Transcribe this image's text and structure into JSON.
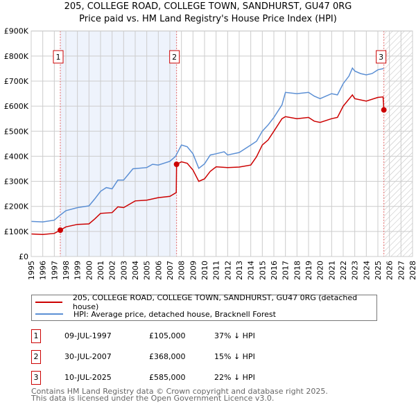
{
  "title": "205, COLLEGE ROAD, COLLEGE TOWN, SANDHURST, GU47 0RG",
  "subtitle": "Price paid vs. HM Land Registry's House Price Index (HPI)",
  "chart_data": {
    "type": "line",
    "title": "205, COLLEGE ROAD, COLLEGE TOWN, SANDHURST, GU47 0RG",
    "subtitle": "Price paid vs. HM Land Registry's House Price Index (HPI)",
    "xlim": [
      1995,
      2028
    ],
    "ylim": [
      0,
      900000
    ],
    "y_ticks": [
      0,
      100000,
      200000,
      300000,
      400000,
      500000,
      600000,
      700000,
      800000,
      900000
    ],
    "y_tick_labels": [
      "£0",
      "£100K",
      "£200K",
      "£300K",
      "£400K",
      "£500K",
      "£600K",
      "£700K",
      "£800K",
      "£900K"
    ],
    "x_ticks": [
      1995,
      1996,
      1997,
      1998,
      1999,
      2000,
      2001,
      2002,
      2003,
      2004,
      2005,
      2006,
      2007,
      2008,
      2009,
      2010,
      2011,
      2012,
      2013,
      2014,
      2015,
      2016,
      2017,
      2018,
      2019,
      2020,
      2021,
      2022,
      2023,
      2024,
      2025,
      2026,
      2027,
      2028
    ],
    "grid": true,
    "colors": {
      "property": "#cc0000",
      "hpi": "#5b8fd4",
      "shade": "#eef3fc",
      "sale_line": "#e06060"
    },
    "series": [
      {
        "name": "205, COLLEGE ROAD, COLLEGE TOWN, SANDHURST, GU47 0RG (detached house)",
        "color": "#cc0000",
        "x": [
          1995,
          1996,
          1997,
          1997.52,
          1998,
          1999,
          2000,
          2000.5,
          2001,
          2002,
          2002.5,
          2003,
          2004,
          2005,
          2006,
          2007,
          2007.55,
          2007.58,
          2008,
          2008.5,
          2009,
          2009.5,
          2010,
          2010.5,
          2011,
          2012,
          2013,
          2014,
          2014.5,
          2015,
          2015.5,
          2016,
          2016.7,
          2017,
          2018,
          2019,
          2019.5,
          2020,
          2021,
          2021.5,
          2022,
          2022.8,
          2023,
          2024,
          2025,
          2025.45,
          2025.52
        ],
        "y": [
          90000,
          88000,
          92000,
          105000,
          118000,
          128000,
          130000,
          150000,
          172000,
          175000,
          198000,
          195000,
          222000,
          225000,
          235000,
          240000,
          255000,
          368000,
          378000,
          372000,
          345000,
          300000,
          310000,
          340000,
          358000,
          355000,
          357000,
          365000,
          398000,
          445000,
          465000,
          500000,
          550000,
          558000,
          550000,
          555000,
          540000,
          535000,
          550000,
          555000,
          600000,
          645000,
          630000,
          620000,
          635000,
          637000,
          585000
        ]
      },
      {
        "name": "HPI: Average price, detached house, Bracknell Forest",
        "color": "#5b8fd4",
        "x": [
          1995,
          1996,
          1997,
          1997.5,
          1998,
          1999,
          2000,
          2000.5,
          2001,
          2001.5,
          2002,
          2002.5,
          2003,
          2003.8,
          2005,
          2005.5,
          2006,
          2007,
          2007.5,
          2008,
          2008.5,
          2009,
          2009.5,
          2010,
          2010.5,
          2011,
          2011.7,
          2012,
          2013,
          2014,
          2014.5,
          2015,
          2015.5,
          2016,
          2016.7,
          2017,
          2018,
          2019,
          2019.5,
          2020,
          2020.5,
          2021,
          2021.5,
          2022,
          2022.5,
          2022.8,
          2023,
          2023.5,
          2024,
          2024.5,
          2025,
          2025.5
        ],
        "y": [
          140000,
          138000,
          145000,
          165000,
          183000,
          195000,
          202000,
          230000,
          260000,
          275000,
          270000,
          305000,
          305000,
          350000,
          355000,
          368000,
          365000,
          380000,
          400000,
          445000,
          438000,
          410000,
          352000,
          370000,
          405000,
          410000,
          418000,
          405000,
          415000,
          445000,
          460000,
          500000,
          525000,
          555000,
          605000,
          655000,
          650000,
          655000,
          640000,
          630000,
          640000,
          650000,
          645000,
          690000,
          720000,
          752000,
          740000,
          730000,
          725000,
          730000,
          745000,
          750000
        ]
      }
    ],
    "sales": [
      {
        "id": "1",
        "x": 1997.52,
        "price": 105000,
        "date": "09-JUL-1997",
        "price_label": "£105,000",
        "hpi_diff": "37% ↓ HPI"
      },
      {
        "id": "2",
        "x": 2007.58,
        "price": 368000,
        "date": "30-JUL-2007",
        "price_label": "£368,000",
        "hpi_diff": "15% ↓ HPI"
      },
      {
        "id": "3",
        "x": 2025.52,
        "price": 585000,
        "date": "10-JUL-2025",
        "price_label": "£585,000",
        "hpi_diff": "22% ↓ HPI"
      }
    ],
    "shaded_period": [
      1997.52,
      2007.58
    ],
    "forecast_hatch_from": 2025.52
  },
  "legend": {
    "property": "205, COLLEGE ROAD, COLLEGE TOWN, SANDHURST, GU47 0RG (detached house)",
    "hpi": "HPI: Average price, detached house, Bracknell Forest"
  },
  "footer": {
    "line1": "Contains HM Land Registry data © Crown copyright and database right 2025.",
    "line2": "This data is licensed under the Open Government Licence v3.0."
  }
}
